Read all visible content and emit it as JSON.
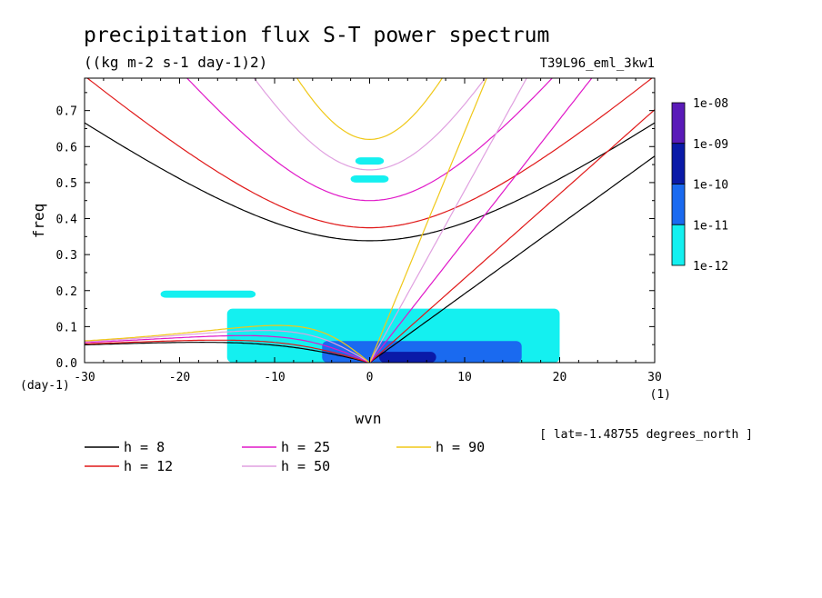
{
  "chart_data": {
    "type": "heatmap",
    "title": "precipitation flux S-T power spectrum",
    "subtitle": "((kg m-2 s-1 day-1)2)",
    "run_label": "T39L96_eml_3kw1",
    "xlabel": "wvn",
    "ylabel": "freq",
    "x_unit": "(1)",
    "y_unit": "(day-1)",
    "xlim": [
      -30,
      30
    ],
    "ylim": [
      0,
      0.79
    ],
    "x_ticks": [
      -30,
      -20,
      -10,
      0,
      10,
      20,
      30
    ],
    "y_ticks": [
      0.0,
      0.1,
      0.2,
      0.3,
      0.4,
      0.5,
      0.6,
      0.7
    ],
    "x_tick_labels": [
      "-30",
      "-20",
      "-10",
      "0",
      "10",
      "20",
      "30"
    ],
    "y_tick_labels": [
      "0.0",
      "0.1",
      "0.2",
      "0.3",
      "0.4",
      "0.5",
      "0.6",
      "0.7"
    ],
    "annotation": "[ lat=-1.48755 degrees_north ]",
    "colorbar": {
      "levels": [
        "1e-08",
        "1e-09",
        "1e-10",
        "1e-11",
        "1e-12"
      ],
      "colors": [
        "#5a1ab8",
        "#0a1aa8",
        "#1a6af0",
        "#14f0f0"
      ]
    },
    "dispersion_curves": [
      {
        "name": "h =  8",
        "color": "#000000"
      },
      {
        "name": "h = 12",
        "color": "#e01818"
      },
      {
        "name": "h = 25",
        "color": "#e018c8"
      },
      {
        "name": "h = 50",
        "color": "#e0a0e0"
      },
      {
        "name": "h = 90",
        "color": "#f0c818"
      }
    ],
    "power_regions": [
      {
        "level": "1e-12",
        "wvn": [
          -1.5,
          1.5
        ],
        "freq": [
          0.55,
          0.57
        ]
      },
      {
        "level": "1e-12",
        "wvn": [
          -2,
          2
        ],
        "freq": [
          0.5,
          0.52
        ]
      },
      {
        "level": "1e-12",
        "wvn": [
          -22,
          -12
        ],
        "freq": [
          0.18,
          0.2
        ]
      },
      {
        "level": "1e-12",
        "wvn": [
          -15,
          20
        ],
        "freq": [
          0.0,
          0.15
        ]
      },
      {
        "level": "1e-11",
        "wvn": [
          -5,
          16
        ],
        "freq": [
          0.0,
          0.06
        ]
      },
      {
        "level": "1e-10",
        "wvn": [
          1,
          7
        ],
        "freq": [
          0.0,
          0.03
        ]
      }
    ]
  }
}
